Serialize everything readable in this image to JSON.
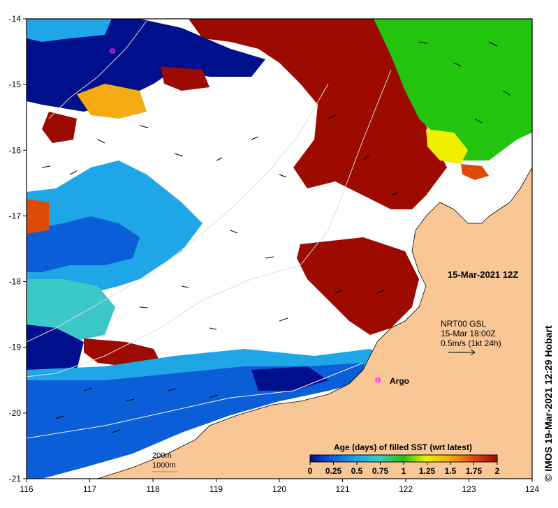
{
  "map": {
    "date_label": "15-Mar-2021 12Z",
    "current_info": {
      "line1": "NRT00 GSL",
      "line2": "15-Mar 18:00Z",
      "line3": "0.5m/s (1kt 24h)"
    },
    "argo_label": "Argo",
    "credit": "© IMOS 19-Mar-2021 12:29 Hobart",
    "isobaths": [
      "200m",
      "1000m"
    ],
    "x_ticks": [
      "116",
      "117",
      "118",
      "119",
      "120",
      "121",
      "122",
      "123",
      "124"
    ],
    "y_ticks": [
      "-14",
      "-15",
      "-16",
      "-17",
      "-18",
      "-19",
      "-20",
      "-21"
    ],
    "lon_range": [
      116,
      124
    ],
    "lat_range": [
      -21,
      -14
    ],
    "colorbar": {
      "title": "Age (days) of filled SST (wrt latest)",
      "tick_labels": [
        "0",
        "0.25",
        "0.5",
        "0.75",
        "1",
        "1.25",
        "1.5",
        "1.75",
        "2"
      ],
      "range": [
        0,
        2
      ]
    },
    "colors": {
      "land": "#f9c796",
      "no_data": "#ffffff",
      "age_0": "#000f8c",
      "age_0_25": "#0a5fd8",
      "age_0_5": "#1ea6e6",
      "age_0_75": "#3cc8c8",
      "age_1": "#22c40e",
      "age_1_25": "#f0ef00",
      "age_1_5": "#f4aa10",
      "age_1_75": "#e04a08",
      "age_2": "#9c0a00",
      "argo": "#ff20ff"
    }
  }
}
